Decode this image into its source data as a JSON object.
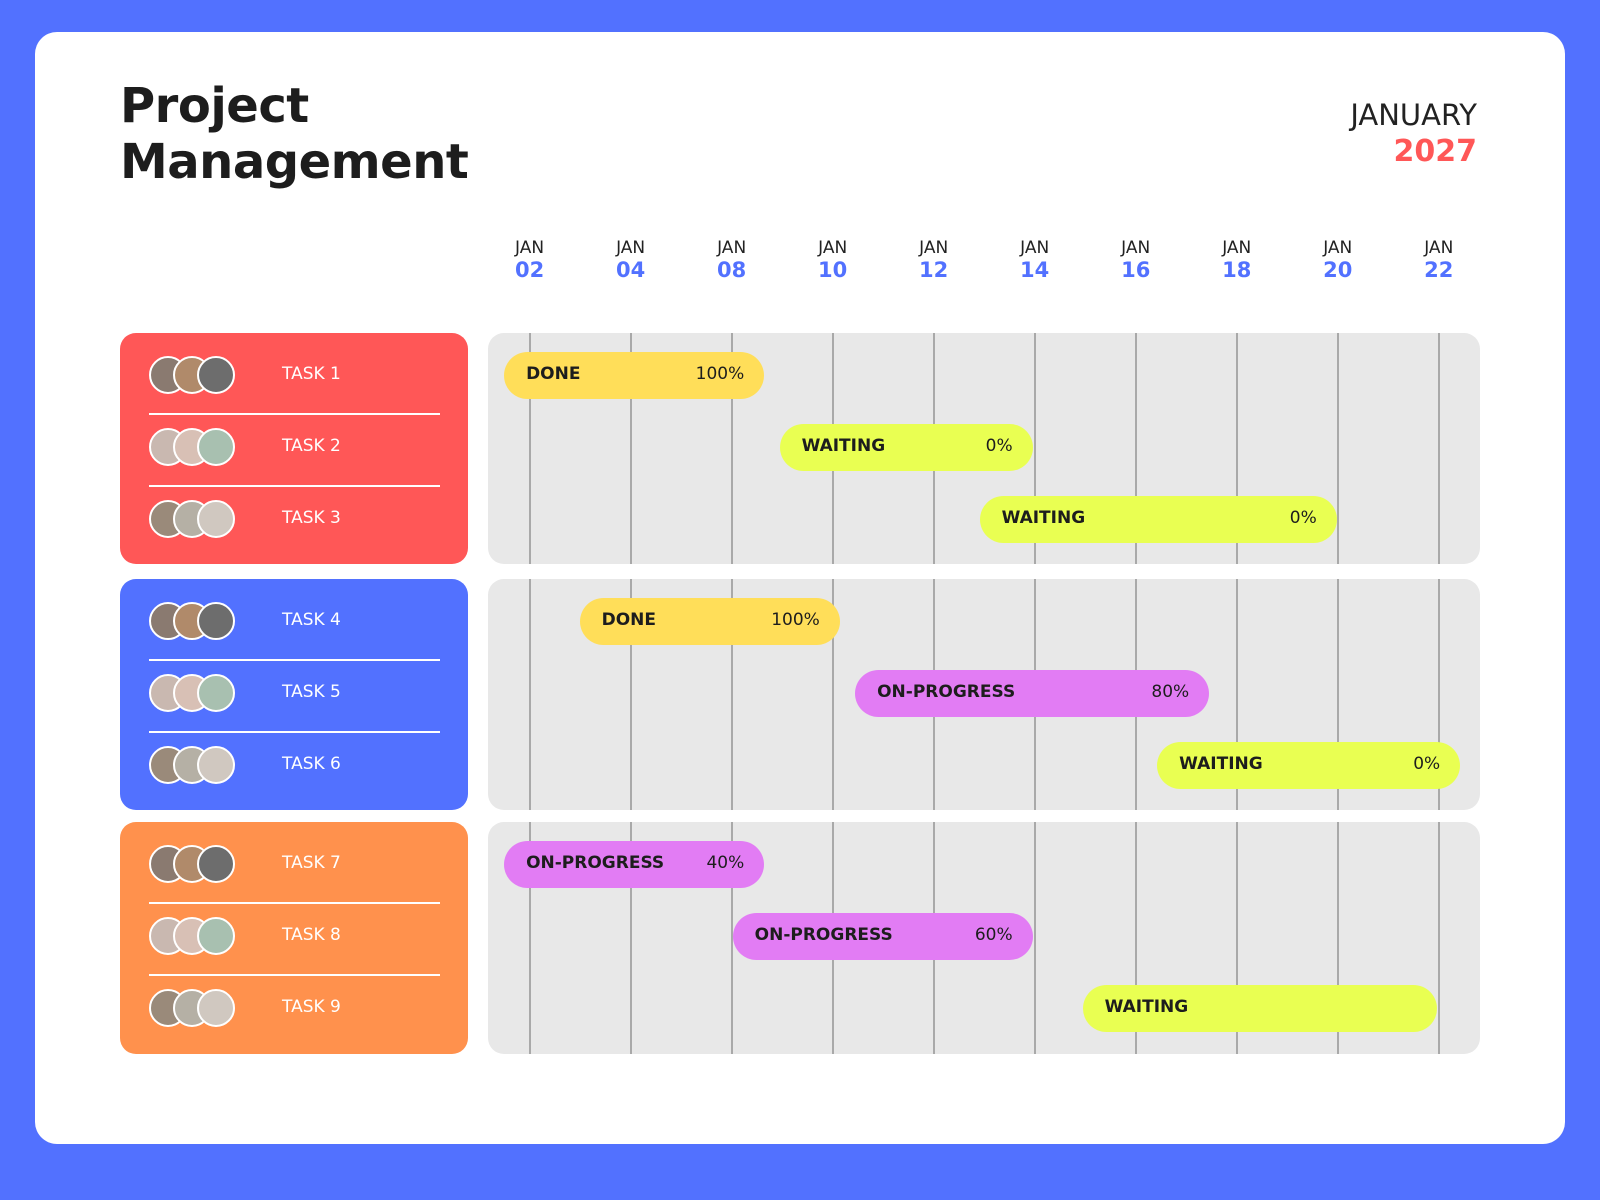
{
  "header": {
    "title": "Project Management",
    "month": "JANUARY",
    "year": "2027"
  },
  "dates": [
    {
      "month": "JAN",
      "day": "02"
    },
    {
      "month": "JAN",
      "day": "04"
    },
    {
      "month": "JAN",
      "day": "08"
    },
    {
      "month": "JAN",
      "day": "10"
    },
    {
      "month": "JAN",
      "day": "12"
    },
    {
      "month": "JAN",
      "day": "14"
    },
    {
      "month": "JAN",
      "day": "16"
    },
    {
      "month": "JAN",
      "day": "18"
    },
    {
      "month": "JAN",
      "day": "20"
    },
    {
      "month": "JAN",
      "day": "22"
    }
  ],
  "groups": [
    {
      "color": "#ff5757",
      "tasks": [
        {
          "name": "TASK 1",
          "status": "DONE",
          "progress": "100%",
          "color": "#ffde59"
        },
        {
          "name": "TASK 2",
          "status": "WAITING",
          "progress": "0%",
          "color": "#e9ff52"
        },
        {
          "name": "TASK 3",
          "status": "WAITING",
          "progress": "0%",
          "color": "#e9ff52"
        }
      ]
    },
    {
      "color": "#5271ff",
      "tasks": [
        {
          "name": "TASK 4",
          "status": "DONE",
          "progress": "100%",
          "color": "#ffde59"
        },
        {
          "name": "TASK 5",
          "status": "ON-PROGRESS",
          "progress": "80%",
          "color": "#e27cf4"
        },
        {
          "name": "TASK 6",
          "status": "WAITING",
          "progress": "0%",
          "color": "#e9ff52"
        }
      ]
    },
    {
      "color": "#ff914d",
      "tasks": [
        {
          "name": "TASK 7",
          "status": "ON-PROGRESS",
          "progress": "40%",
          "color": "#e27cf4"
        },
        {
          "name": "TASK 8",
          "status": "ON-PROGRESS",
          "progress": "60%",
          "color": "#e27cf4"
        },
        {
          "name": "TASK 9",
          "status": "WAITING",
          "color": "#e9ff52"
        }
      ]
    }
  ]
}
